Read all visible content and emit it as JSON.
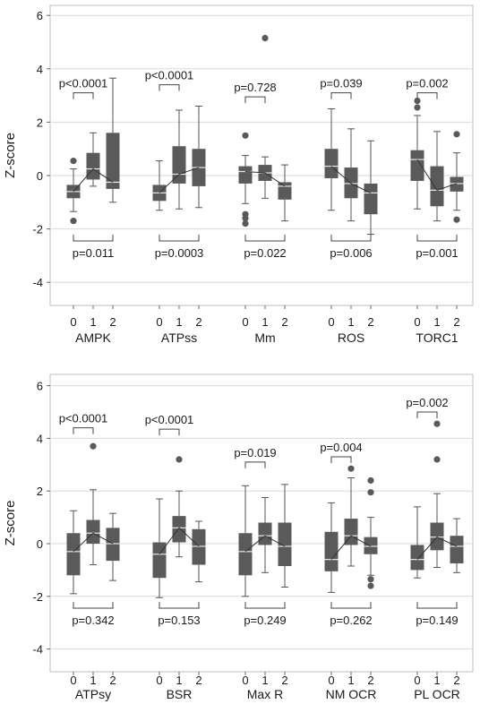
{
  "chart_data": [
    {
      "type": "box",
      "ylabel": "Z-score",
      "ylim": [
        -4.6,
        6.4
      ],
      "yticks": [
        6,
        4,
        2,
        0,
        -2,
        -4
      ],
      "grid": "horizontal",
      "x_tick_labels": [
        "0",
        "1",
        "2"
      ],
      "colors": {
        "box": "#5a5a5a",
        "median": "#e6e6e6",
        "line": "#333333",
        "grid": "#d9d9d9",
        "frame": "#bfbfbf"
      },
      "groups": [
        {
          "label": "AMPK",
          "boxes": [
            {
              "tick": "0",
              "min": -1.35,
              "q1": -0.85,
              "median": -0.6,
              "q3": -0.35,
              "max": 0.25,
              "outliers": [
                0.55,
                -1.7
              ]
            },
            {
              "tick": "1",
              "min": -0.4,
              "q1": -0.15,
              "median": 0.25,
              "q3": 0.85,
              "max": 1.6,
              "outliers": []
            },
            {
              "tick": "2",
              "min": -1.0,
              "q1": -0.5,
              "median": -0.25,
              "q3": 1.6,
              "max": 3.65,
              "outliers": []
            }
          ],
          "trend": [
            -0.6,
            0.25,
            -0.25
          ],
          "top_bracket": {
            "label": "p<0.0001",
            "y": 3.1,
            "from": "0",
            "to": "1"
          },
          "bottom_bracket": {
            "label": "p=0.011",
            "y": -2.45,
            "from": "0",
            "to": "2"
          }
        },
        {
          "label": "ATPss",
          "boxes": [
            {
              "tick": "0",
              "min": -1.3,
              "q1": -0.95,
              "median": -0.65,
              "q3": -0.35,
              "max": 0.55,
              "outliers": []
            },
            {
              "tick": "1",
              "min": -1.25,
              "q1": -0.3,
              "median": 0.05,
              "q3": 1.1,
              "max": 2.45,
              "outliers": []
            },
            {
              "tick": "2",
              "min": -1.2,
              "q1": -0.4,
              "median": 0.3,
              "q3": 1.0,
              "max": 2.6,
              "outliers": []
            }
          ],
          "trend": [
            -0.65,
            0.05,
            0.3
          ],
          "top_bracket": {
            "label": "p<0.0001",
            "y": 3.4,
            "from": "0",
            "to": "1"
          },
          "bottom_bracket": {
            "label": "p=0.0003",
            "y": -2.45,
            "from": "0",
            "to": "2"
          }
        },
        {
          "label": "Mm",
          "boxes": [
            {
              "tick": "0",
              "min": -1.05,
              "q1": -0.3,
              "median": 0.15,
              "q3": 0.35,
              "max": 0.75,
              "outliers": [
                1.5,
                -1.45,
                -1.6,
                -1.8
              ]
            },
            {
              "tick": "1",
              "min": -0.85,
              "q1": -0.2,
              "median": 0.1,
              "q3": 0.4,
              "max": 0.7,
              "outliers": [
                5.15
              ]
            },
            {
              "tick": "2",
              "min": -1.7,
              "q1": -0.9,
              "median": -0.4,
              "q3": -0.25,
              "max": 0.4,
              "outliers": []
            }
          ],
          "trend": [
            0.15,
            0.1,
            -0.4
          ],
          "top_bracket": {
            "label": "p=0.728",
            "y": 2.95,
            "from": "0",
            "to": "1"
          },
          "bottom_bracket": {
            "label": "p=0.022",
            "y": -2.45,
            "from": "0",
            "to": "2"
          }
        },
        {
          "label": "ROS",
          "boxes": [
            {
              "tick": "0",
              "min": -1.3,
              "q1": -0.1,
              "median": 0.35,
              "q3": 1.0,
              "max": 2.5,
              "outliers": []
            },
            {
              "tick": "1",
              "min": -1.7,
              "q1": -0.85,
              "median": -0.3,
              "q3": 0.3,
              "max": 1.75,
              "outliers": []
            },
            {
              "tick": "2",
              "min": -2.2,
              "q1": -1.45,
              "median": -0.65,
              "q3": -0.3,
              "max": 1.3,
              "outliers": []
            }
          ],
          "trend": [
            0.35,
            -0.3,
            -0.65
          ],
          "top_bracket": {
            "label": "p=0.039",
            "y": 3.1,
            "from": "0",
            "to": "1"
          },
          "bottom_bracket": {
            "label": "p=0.006",
            "y": -2.45,
            "from": "0",
            "to": "2"
          }
        },
        {
          "label": "TORC1",
          "boxes": [
            {
              "tick": "0",
              "min": -1.25,
              "q1": -0.2,
              "median": 0.6,
              "q3": 0.95,
              "max": 2.25,
              "outliers": [
                2.55,
                2.8
              ]
            },
            {
              "tick": "1",
              "min": -1.7,
              "q1": -1.15,
              "median": -0.55,
              "q3": 0.35,
              "max": 1.65,
              "outliers": []
            },
            {
              "tick": "2",
              "min": -1.3,
              "q1": -0.6,
              "median": -0.3,
              "q3": -0.05,
              "max": 0.85,
              "outliers": [
                1.55,
                -1.65
              ]
            }
          ],
          "trend": [
            0.6,
            -0.55,
            -0.3
          ],
          "top_bracket": {
            "label": "p=0.002",
            "y": 3.1,
            "from": "0",
            "to": "1"
          },
          "bottom_bracket": {
            "label": "p=0.001",
            "y": -2.45,
            "from": "0",
            "to": "2"
          }
        }
      ]
    },
    {
      "type": "box",
      "ylabel": "Z-score",
      "ylim": [
        -4.6,
        6.4
      ],
      "yticks": [
        6,
        4,
        2,
        0,
        -2,
        -4
      ],
      "grid": "horizontal",
      "x_tick_labels": [
        "0",
        "1",
        "2"
      ],
      "colors": {
        "box": "#5a5a5a",
        "median": "#e6e6e6",
        "line": "#333333",
        "grid": "#d9d9d9",
        "frame": "#bfbfbf"
      },
      "groups": [
        {
          "label": "ATPsy",
          "boxes": [
            {
              "tick": "0",
              "min": -1.9,
              "q1": -1.2,
              "median": -0.3,
              "q3": 0.4,
              "max": 1.25,
              "outliers": []
            },
            {
              "tick": "1",
              "min": -0.8,
              "q1": 0.0,
              "median": 0.4,
              "q3": 0.9,
              "max": 2.05,
              "outliers": [
                3.7
              ]
            },
            {
              "tick": "2",
              "min": -1.4,
              "q1": -0.65,
              "median": 0.0,
              "q3": 0.6,
              "max": 1.15,
              "outliers": []
            }
          ],
          "trend": [
            -0.3,
            0.4,
            0.0
          ],
          "top_bracket": {
            "label": "p<0.0001",
            "y": 4.4,
            "from": "0",
            "to": "1"
          },
          "bottom_bracket": {
            "label": "p=0.342",
            "y": -2.45,
            "from": "0",
            "to": "2"
          }
        },
        {
          "label": "BSR",
          "boxes": [
            {
              "tick": "0",
              "min": -2.05,
              "q1": -1.3,
              "median": -0.4,
              "q3": 0.05,
              "max": 1.7,
              "outliers": []
            },
            {
              "tick": "1",
              "min": -0.5,
              "q1": 0.05,
              "median": 0.6,
              "q3": 1.05,
              "max": 2.0,
              "outliers": [
                3.2
              ]
            },
            {
              "tick": "2",
              "min": -1.45,
              "q1": -0.8,
              "median": -0.1,
              "q3": 0.55,
              "max": 0.85,
              "outliers": []
            }
          ],
          "trend": [
            -0.4,
            0.6,
            -0.1
          ],
          "top_bracket": {
            "label": "p<0.0001",
            "y": 4.35,
            "from": "0",
            "to": "1"
          },
          "bottom_bracket": {
            "label": "p=0.153",
            "y": -2.45,
            "from": "0",
            "to": "2"
          }
        },
        {
          "label": "Max R",
          "boxes": [
            {
              "tick": "0",
              "min": -2.0,
              "q1": -1.2,
              "median": -0.3,
              "q3": 0.4,
              "max": 2.2,
              "outliers": []
            },
            {
              "tick": "1",
              "min": -1.1,
              "q1": -0.05,
              "median": 0.3,
              "q3": 0.8,
              "max": 1.75,
              "outliers": []
            },
            {
              "tick": "2",
              "min": -1.65,
              "q1": -0.85,
              "median": -0.1,
              "q3": 0.8,
              "max": 2.25,
              "outliers": []
            }
          ],
          "trend": [
            -0.3,
            0.3,
            -0.1
          ],
          "top_bracket": {
            "label": "p=0.019",
            "y": 3.1,
            "from": "0",
            "to": "1"
          },
          "bottom_bracket": {
            "label": "p=0.249",
            "y": -2.45,
            "from": "0",
            "to": "2"
          }
        },
        {
          "label": "NM OCR",
          "boxes": [
            {
              "tick": "0",
              "min": -1.85,
              "q1": -1.05,
              "median": -0.6,
              "q3": 0.45,
              "max": 1.55,
              "outliers": []
            },
            {
              "tick": "1",
              "min": -0.85,
              "q1": -0.05,
              "median": 0.3,
              "q3": 0.95,
              "max": 2.5,
              "outliers": [
                2.85
              ]
            },
            {
              "tick": "2",
              "min": -1.2,
              "q1": -0.4,
              "median": -0.1,
              "q3": 0.25,
              "max": 1.0,
              "outliers": [
                1.95,
                2.4,
                -1.35,
                -1.6
              ]
            }
          ],
          "trend": [
            -0.6,
            0.3,
            -0.1
          ],
          "top_bracket": {
            "label": "p=0.004",
            "y": 3.3,
            "from": "0",
            "to": "1"
          },
          "bottom_bracket": {
            "label": "p=0.262",
            "y": -2.45,
            "from": "0",
            "to": "2"
          }
        },
        {
          "label": "PL OCR",
          "boxes": [
            {
              "tick": "0",
              "min": -1.3,
              "q1": -1.0,
              "median": -0.6,
              "q3": -0.05,
              "max": 1.4,
              "outliers": []
            },
            {
              "tick": "1",
              "min": -0.9,
              "q1": -0.25,
              "median": 0.25,
              "q3": 0.8,
              "max": 1.9,
              "outliers": [
                3.2,
                4.55
              ]
            },
            {
              "tick": "2",
              "min": -1.1,
              "q1": -0.75,
              "median": -0.1,
              "q3": 0.3,
              "max": 0.95,
              "outliers": []
            }
          ],
          "trend": [
            -0.6,
            0.25,
            -0.1
          ],
          "top_bracket": {
            "label": "p=0.002",
            "y": 5.0,
            "from": "0",
            "to": "1"
          },
          "bottom_bracket": {
            "label": "p=0.149",
            "y": -2.45,
            "from": "0",
            "to": "2"
          }
        }
      ]
    }
  ]
}
